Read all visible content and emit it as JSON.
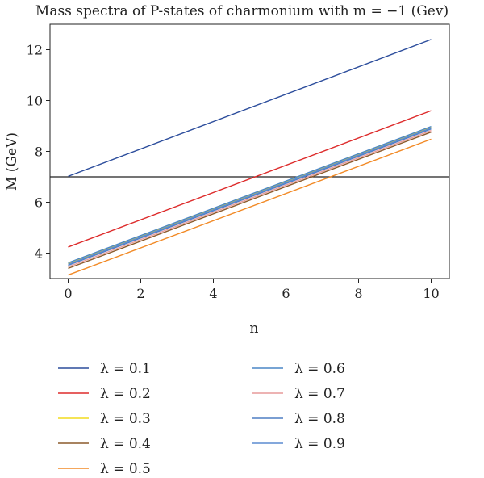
{
  "chart_data": {
    "type": "line",
    "title": "Mass spectra of P-states of charmonium with m = −1 (Gev)",
    "xlabel": "n",
    "ylabel": "M (GeV)",
    "xlim": [
      -0.5,
      10.5
    ],
    "ylim": [
      3.0,
      13.0
    ],
    "xticks": [
      0,
      2,
      4,
      6,
      8,
      10
    ],
    "yticks": [
      4,
      6,
      8,
      10,
      12
    ],
    "grid": false,
    "legend_position": "bottom",
    "x": [
      0,
      10
    ],
    "series": [
      {
        "name": "λ = 0.1",
        "color": "#2c4d9c",
        "values": [
          7.02,
          12.4
        ]
      },
      {
        "name": "λ = 0.2",
        "color": "#dd2b2b",
        "values": [
          4.24,
          9.6
        ]
      },
      {
        "name": "λ = 0.3",
        "color": "#f2dc1e",
        "values": [
          3.58,
          8.94
        ]
      },
      {
        "name": "λ = 0.4",
        "color": "#8b5a2b",
        "values": [
          3.4,
          8.76
        ]
      },
      {
        "name": "λ = 0.5",
        "color": "#f28a26",
        "values": [
          3.14,
          8.48
        ]
      },
      {
        "name": "λ = 0.6",
        "color": "#4a86c6",
        "values": [
          3.62,
          8.98
        ]
      },
      {
        "name": "λ = 0.7",
        "color": "#e79a9a",
        "values": [
          3.46,
          8.82
        ]
      },
      {
        "name": "λ = 0.8",
        "color": "#4f7fc4",
        "values": [
          3.52,
          8.88
        ]
      },
      {
        "name": "λ = 0.9",
        "color": "#5b8bd0",
        "values": [
          3.56,
          8.92
        ]
      }
    ],
    "reference_lines": [
      {
        "type": "horizontal",
        "y": 7.0,
        "color": "#222222"
      }
    ]
  }
}
